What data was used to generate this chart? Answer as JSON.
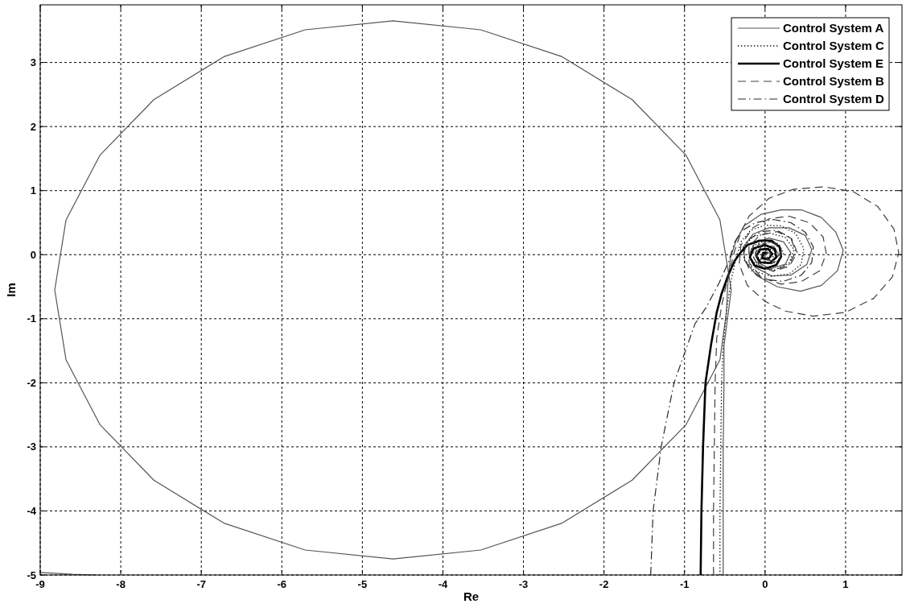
{
  "chart_data": {
    "type": "line",
    "xlabel": "Re",
    "ylabel": "Im",
    "xlim": [
      -9,
      1.7
    ],
    "ylim": [
      -5,
      3.9
    ],
    "xticks": [
      -9,
      -8,
      -7,
      -6,
      -5,
      -4,
      -3,
      -2,
      -1,
      0,
      1
    ],
    "yticks": [
      -5,
      -4,
      -3,
      -2,
      -1,
      0,
      1,
      2,
      3
    ],
    "grid": true,
    "legend": "top right",
    "series": [
      {
        "name": "Control System A",
        "color": "#555555",
        "line_style": "solid",
        "x": [
          -9.0,
          -8.6,
          -8.3,
          null,
          -0.52,
          -0.52,
          -0.52,
          -0.51,
          -0.51,
          -0.42,
          -0.56,
          -0.98,
          -1.65,
          -2.52,
          -3.53,
          -4.62,
          -5.71,
          -6.72,
          -7.59,
          -8.26,
          -8.68,
          -8.82,
          -8.68,
          -8.26,
          -7.59,
          -6.72,
          -5.71,
          -4.62,
          -3.53,
          -2.52,
          -1.65,
          -0.98,
          -0.56,
          -0.48,
          -0.46,
          -0.43,
          -0.36,
          -0.26,
          -0.05,
          0.2,
          0.45,
          0.7,
          0.88,
          0.97,
          0.9,
          0.7,
          0.44,
          0.15,
          -0.1,
          -0.25,
          -0.27,
          -0.15,
          0.05,
          0.3,
          0.5,
          0.58,
          0.52,
          0.32,
          0.08,
          -0.12,
          -0.2,
          -0.13,
          0.05,
          0.23,
          0.32,
          0.25,
          0.07,
          -0.08,
          -0.12,
          -0.03,
          0.11,
          0.17,
          0.09,
          -0.03,
          0.0,
          0.07
        ],
        "values": [
          -4.96,
          -4.99,
          -5.0,
          null,
          -5.0,
          -4.0,
          -3.0,
          -2.0,
          -1.42,
          -0.55,
          0.54,
          1.55,
          2.42,
          3.09,
          3.51,
          3.65,
          3.51,
          3.09,
          2.42,
          1.55,
          0.54,
          -0.55,
          -1.64,
          -2.65,
          -3.52,
          -4.19,
          -4.61,
          -4.75,
          -4.61,
          -4.19,
          -3.52,
          -2.65,
          -1.64,
          -0.9,
          -0.4,
          -0.05,
          0.22,
          0.45,
          0.63,
          0.7,
          0.7,
          0.58,
          0.35,
          0.07,
          -0.25,
          -0.48,
          -0.57,
          -0.5,
          -0.33,
          -0.1,
          0.12,
          0.32,
          0.42,
          0.42,
          0.3,
          0.08,
          -0.15,
          -0.32,
          -0.33,
          -0.2,
          0.0,
          0.18,
          0.26,
          0.2,
          0.03,
          -0.15,
          -0.22,
          -0.13,
          0.03,
          0.14,
          0.13,
          0.0,
          -0.1,
          -0.07,
          0.04,
          0.02
        ]
      },
      {
        "name": "Control System C",
        "color": "#151515",
        "line_style": "dotted",
        "x": [
          -0.56,
          -0.56,
          -0.55,
          -0.54,
          -0.52,
          -0.47,
          -0.42,
          -0.36,
          -0.3,
          -0.18,
          0.0,
          0.2,
          0.38,
          0.48,
          0.45,
          0.3,
          0.08,
          -0.12,
          -0.26,
          -0.27,
          -0.15,
          0.05,
          0.25,
          0.36,
          0.3,
          0.12,
          -0.07,
          -0.19,
          -0.16,
          0.0,
          0.17,
          0.23,
          0.14,
          -0.02,
          -0.1,
          -0.03,
          0.1,
          0.1,
          0.0
        ],
        "values": [
          -5.0,
          -4.0,
          -3.0,
          -2.0,
          -1.4,
          -0.8,
          -0.4,
          -0.05,
          0.2,
          0.38,
          0.46,
          0.45,
          0.33,
          0.1,
          -0.15,
          -0.3,
          -0.34,
          -0.26,
          -0.08,
          0.12,
          0.28,
          0.34,
          0.27,
          0.08,
          -0.13,
          -0.24,
          -0.2,
          -0.05,
          0.13,
          0.22,
          0.17,
          0.02,
          -0.12,
          -0.14,
          -0.02,
          0.1,
          0.08,
          -0.04,
          -0.04
        ]
      },
      {
        "name": "Control System E",
        "color": "#000000",
        "line_style": "solid",
        "x": [
          -0.8,
          -0.79,
          -0.77,
          -0.74,
          -0.67,
          -0.6,
          -0.54,
          -0.46,
          -0.38,
          -0.3,
          -0.22,
          -0.07,
          0.08,
          0.18,
          0.2,
          0.14,
          0.0,
          -0.13,
          -0.19,
          -0.14,
          0.0,
          0.12,
          0.14,
          0.06,
          -0.06,
          -0.11,
          -0.06,
          0.04,
          0.09,
          0.04,
          -0.04,
          -0.02,
          0.03
        ],
        "values": [
          -5.0,
          -4.0,
          -3.0,
          -2.0,
          -1.4,
          -0.9,
          -0.61,
          -0.33,
          -0.1,
          0.04,
          0.15,
          0.22,
          0.22,
          0.12,
          -0.03,
          -0.16,
          -0.22,
          -0.17,
          -0.04,
          0.1,
          0.15,
          0.09,
          -0.04,
          -0.13,
          -0.12,
          -0.02,
          0.08,
          0.09,
          0.01,
          -0.07,
          -0.05,
          0.03,
          0.02
        ]
      },
      {
        "name": "Control System B",
        "color": "#404040",
        "line_style": "dashed",
        "x": [
          -0.64,
          -0.64,
          -0.63,
          -0.62,
          -0.6,
          -0.54,
          -0.46,
          -0.38,
          -0.3,
          -0.2,
          0.05,
          0.35,
          0.73,
          1.1,
          1.4,
          1.6,
          1.66,
          1.58,
          1.35,
          1.0,
          0.6,
          0.25,
          0.0,
          -0.22,
          -0.32,
          -0.3,
          -0.15,
          0.05,
          0.3,
          0.55,
          0.72,
          0.76,
          0.68,
          0.45,
          0.2,
          -0.05,
          -0.2,
          -0.2,
          -0.07,
          0.15,
          0.33,
          0.4,
          0.3,
          0.1,
          -0.08,
          -0.12,
          -0.02,
          0.13,
          0.2,
          0.1,
          -0.02,
          0.03
        ],
        "values": [
          -5.0,
          -4.0,
          -3.0,
          -2.0,
          -1.3,
          -0.8,
          -0.35,
          0.05,
          0.35,
          0.6,
          0.88,
          1.02,
          1.06,
          0.98,
          0.75,
          0.4,
          0.03,
          -0.35,
          -0.68,
          -0.9,
          -0.96,
          -0.88,
          -0.73,
          -0.48,
          -0.15,
          0.15,
          0.42,
          0.56,
          0.6,
          0.5,
          0.28,
          0.02,
          -0.25,
          -0.42,
          -0.46,
          -0.35,
          -0.12,
          0.12,
          0.3,
          0.36,
          0.25,
          0.03,
          -0.18,
          -0.26,
          -0.16,
          0.04,
          0.18,
          0.18,
          0.02,
          -0.1,
          -0.05,
          0.05
        ]
      },
      {
        "name": "Control System D",
        "color": "#2a2a2a",
        "line_style": "dashdot",
        "x": [
          -1.42,
          -1.39,
          -1.29,
          -1.13,
          -0.87,
          -0.73,
          -0.57,
          -0.45,
          -0.38,
          -0.29,
          -0.12,
          0.1,
          0.32,
          0.5,
          0.6,
          0.58,
          0.45,
          0.22,
          -0.02,
          -0.2,
          -0.27,
          -0.22,
          -0.05,
          0.15,
          0.32,
          0.38,
          0.3,
          0.1,
          -0.08,
          -0.16,
          -0.08,
          0.08,
          0.2,
          0.2,
          0.08,
          -0.05,
          -0.03,
          0.06,
          0.08,
          0.02
        ],
        "values": [
          -5.0,
          -4.0,
          -3.0,
          -2.0,
          -1.08,
          -0.82,
          -0.44,
          -0.1,
          0.19,
          0.37,
          0.5,
          0.55,
          0.5,
          0.35,
          0.12,
          -0.12,
          -0.32,
          -0.42,
          -0.38,
          -0.22,
          0.0,
          0.22,
          0.36,
          0.38,
          0.26,
          0.05,
          -0.15,
          -0.25,
          -0.18,
          0.0,
          0.16,
          0.2,
          0.1,
          -0.05,
          -0.14,
          -0.08,
          0.05,
          0.07,
          -0.02,
          -0.03
        ]
      }
    ]
  }
}
